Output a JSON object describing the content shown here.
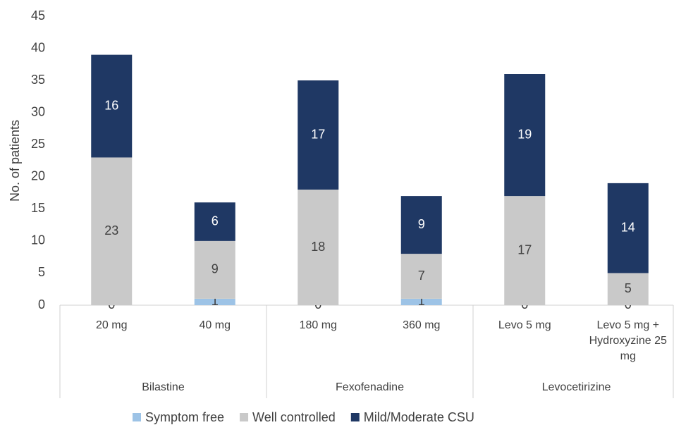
{
  "chart_data": {
    "type": "stacked-bar",
    "y_label": "No. of patients",
    "categories": [
      "20 mg",
      "40 mg",
      "180 mg",
      "360 mg",
      "Levo 5 mg",
      "Levo 5 mg + Hydroxyzine 25 mg"
    ],
    "groups": [
      "Bilastine",
      "Fexofenadine",
      "Levocetirizine"
    ],
    "series": [
      {
        "name": "Symptom free",
        "color": "#9dc3e6",
        "values": [
          0,
          1,
          0,
          1,
          0,
          0
        ]
      },
      {
        "name": "Well controlled",
        "color": "#c9c9c9",
        "values": [
          23,
          9,
          18,
          7,
          17,
          5
        ]
      },
      {
        "name": "Mild/Moderate CSU",
        "color": "#1f3864",
        "values": [
          16,
          6,
          17,
          9,
          19,
          14
        ]
      }
    ],
    "ylim": [
      0,
      45
    ],
    "yticks": [
      0,
      5,
      10,
      15,
      20,
      25,
      30,
      35,
      40,
      45
    ],
    "grid": false,
    "legend": "bottom"
  }
}
